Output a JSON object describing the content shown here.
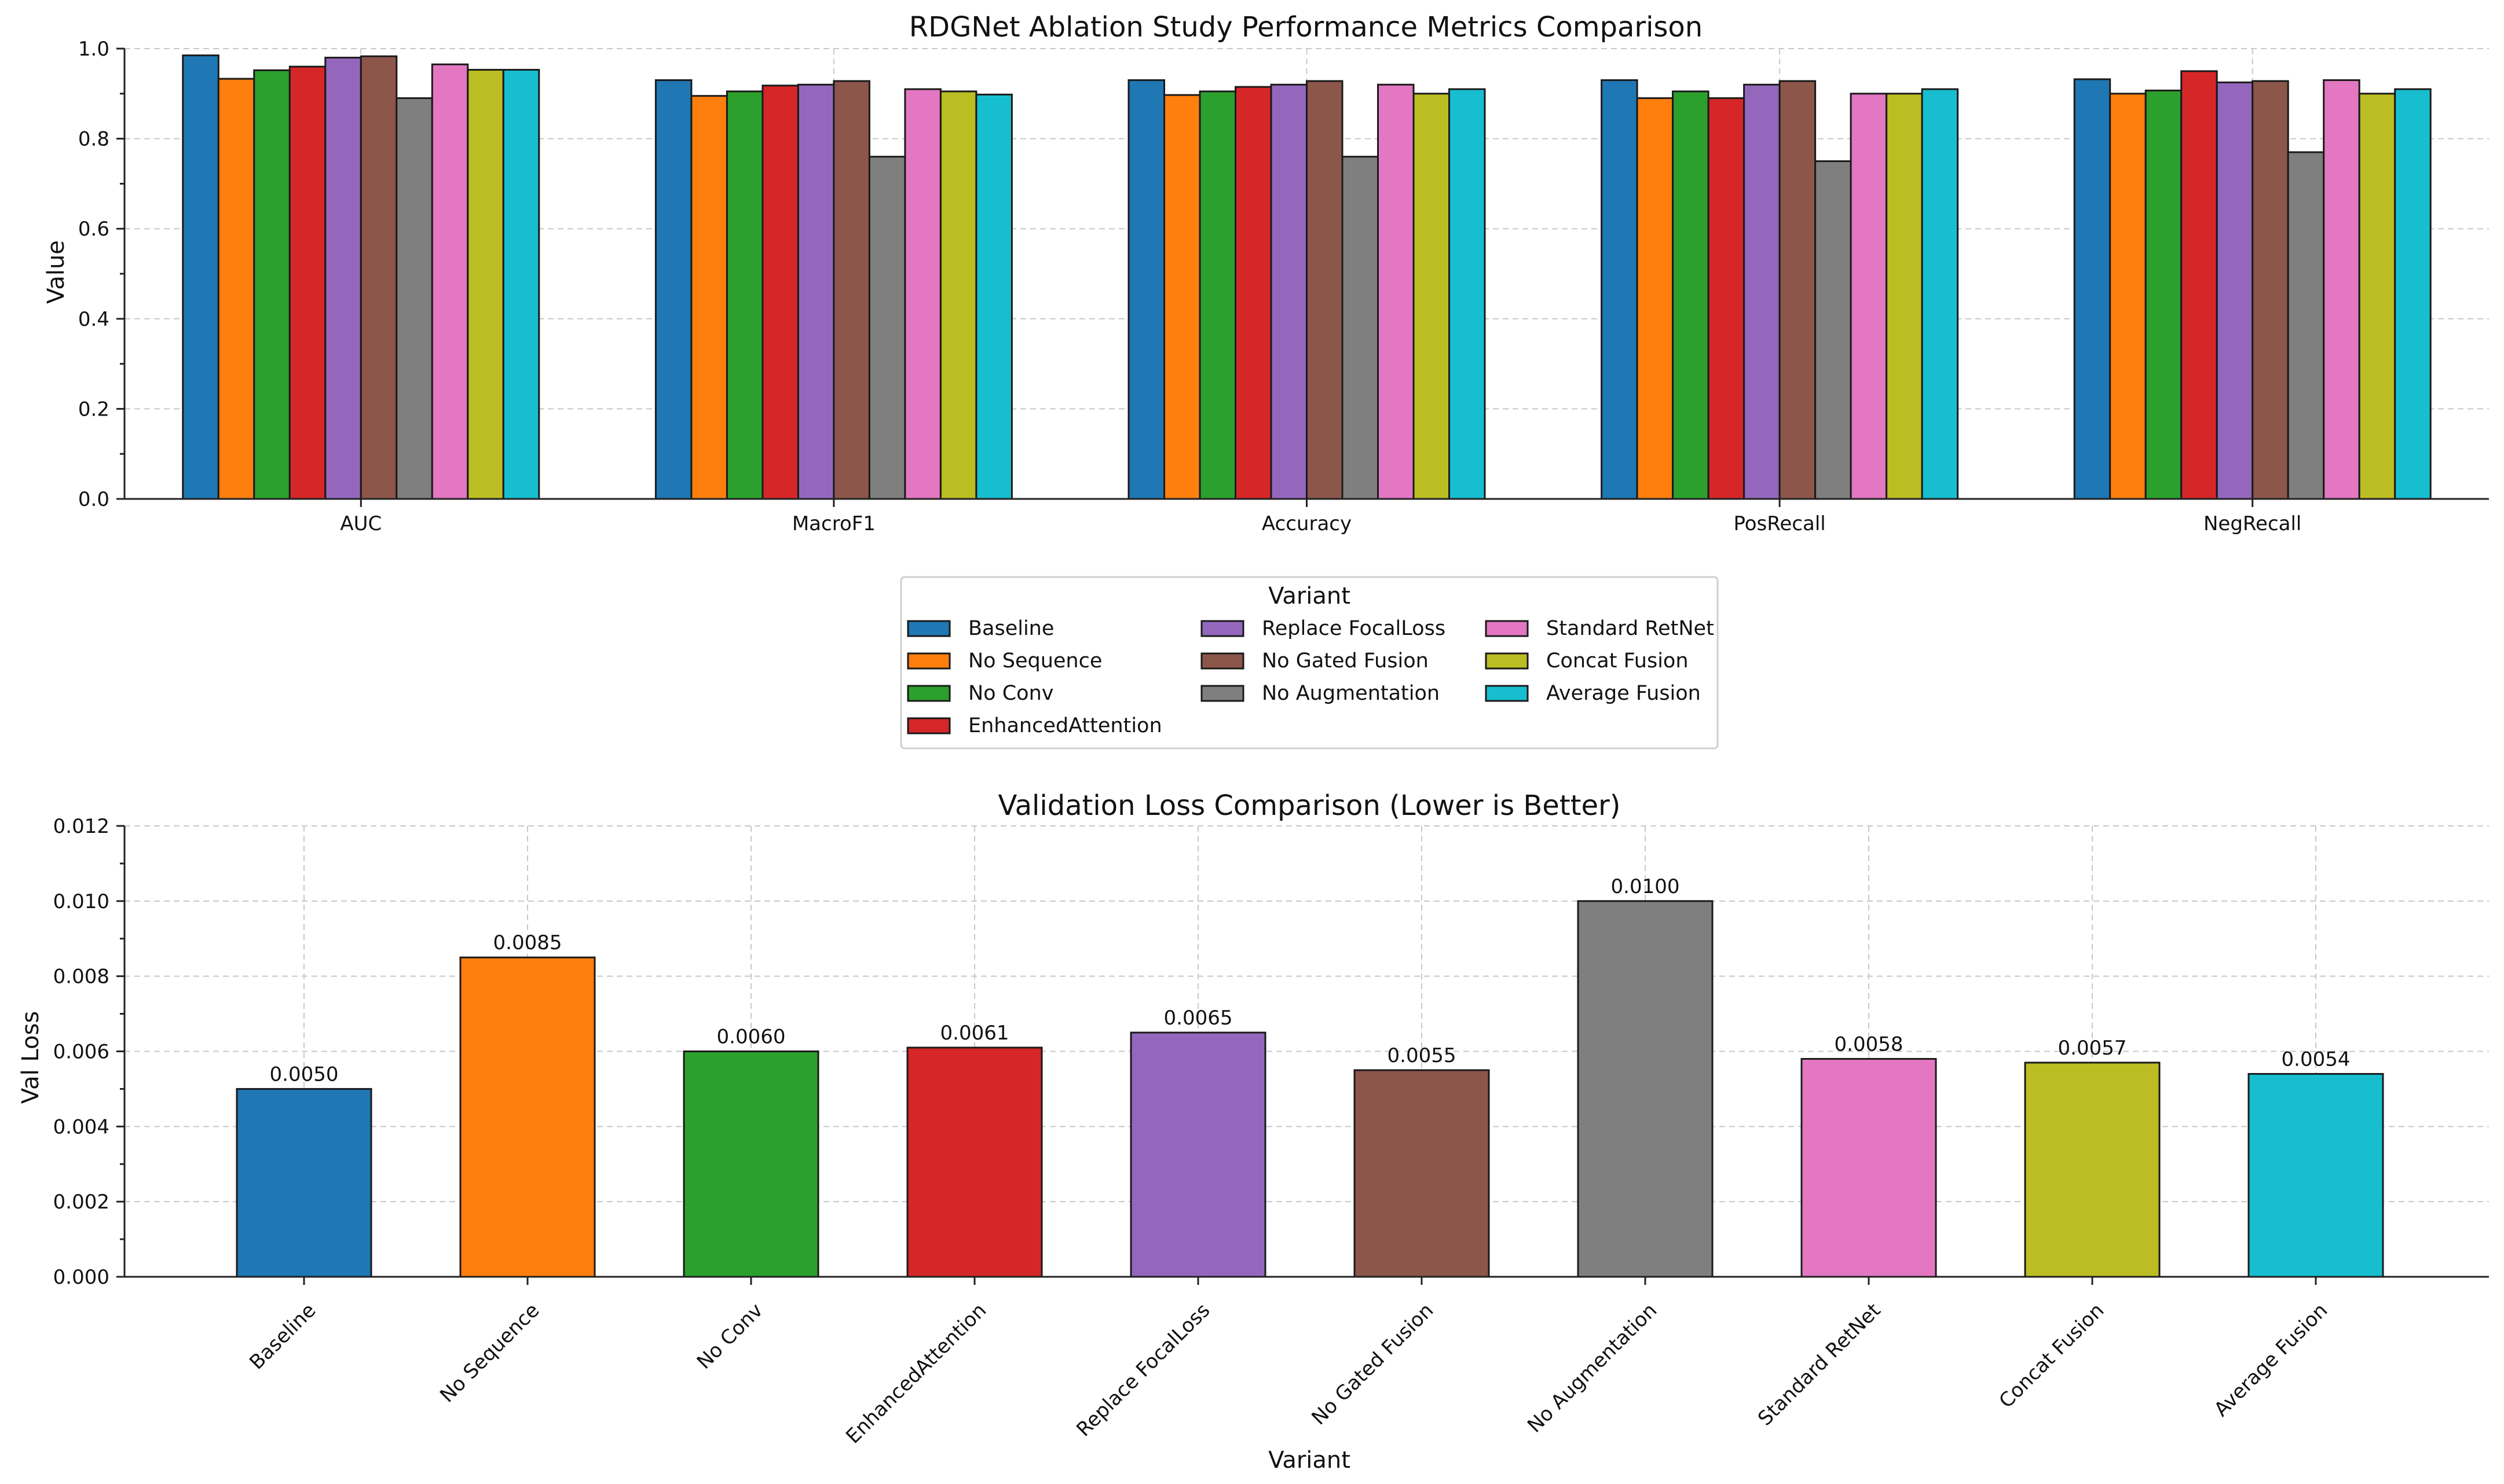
{
  "colors": {
    "Baseline": "#1f77b4",
    "No Sequence": "#ff7f0e",
    "No Conv": "#2ca02c",
    "EnhancedAttention": "#d62728",
    "Replace FocalLoss": "#9467bd",
    "No Gated Fusion": "#8c564b",
    "No Augmentation": "#7f7f7f",
    "Standard RetNet": "#e377c2",
    "Concat Fusion": "#bcbd22",
    "Average Fusion": "#17becf"
  },
  "legend": {
    "title": "Variant",
    "columns": [
      [
        "Baseline",
        "No Sequence",
        "No Conv",
        "EnhancedAttention"
      ],
      [
        "Replace FocalLoss",
        "No Gated Fusion",
        "No Augmentation"
      ],
      [
        "Standard RetNet",
        "Concat Fusion",
        "Average Fusion"
      ]
    ]
  },
  "chart_data": [
    {
      "type": "bar",
      "title": "RDGNet Ablation Study Performance Metrics Comparison",
      "xlabel": "",
      "ylabel": "Value",
      "ylim": [
        0,
        1.0
      ],
      "yticks": [
        "0.0",
        "0.2",
        "0.4",
        "0.6",
        "0.8",
        "1.0"
      ],
      "grid": true,
      "categories": [
        "AUC",
        "MacroF1",
        "Accuracy",
        "PosRecall",
        "NegRecall"
      ],
      "series": [
        {
          "name": "Baseline",
          "values": [
            0.985,
            0.93,
            0.93,
            0.93,
            0.932
          ]
        },
        {
          "name": "No Sequence",
          "values": [
            0.933,
            0.895,
            0.897,
            0.89,
            0.9
          ]
        },
        {
          "name": "No Conv",
          "values": [
            0.952,
            0.905,
            0.905,
            0.905,
            0.907
          ]
        },
        {
          "name": "EnhancedAttention",
          "values": [
            0.96,
            0.918,
            0.915,
            0.89,
            0.95
          ]
        },
        {
          "name": "Replace FocalLoss",
          "values": [
            0.98,
            0.92,
            0.92,
            0.92,
            0.925
          ]
        },
        {
          "name": "No Gated Fusion",
          "values": [
            0.983,
            0.928,
            0.928,
            0.928,
            0.928
          ]
        },
        {
          "name": "No Augmentation",
          "values": [
            0.89,
            0.76,
            0.76,
            0.75,
            0.77
          ]
        },
        {
          "name": "Standard RetNet",
          "values": [
            0.965,
            0.91,
            0.92,
            0.9,
            0.93
          ]
        },
        {
          "name": "Concat Fusion",
          "values": [
            0.953,
            0.905,
            0.9,
            0.9,
            0.9
          ]
        },
        {
          "name": "Average Fusion",
          "values": [
            0.953,
            0.898,
            0.91,
            0.91,
            0.91
          ]
        }
      ]
    },
    {
      "type": "bar",
      "title": "Validation Loss Comparison (Lower is Better)",
      "xlabel": "Variant",
      "ylabel": "Val Loss",
      "ylim": [
        0,
        0.012
      ],
      "yticks": [
        "0.000",
        "0.002",
        "0.004",
        "0.006",
        "0.008",
        "0.010",
        "0.012"
      ],
      "grid": true,
      "categories": [
        "Baseline",
        "No Sequence",
        "No Conv",
        "EnhancedAttention",
        "Replace FocalLoss",
        "No Gated Fusion",
        "No Augmentation",
        "Standard RetNet",
        "Concat Fusion",
        "Average Fusion"
      ],
      "values": [
        0.005,
        0.0085,
        0.006,
        0.0061,
        0.0065,
        0.0055,
        0.01,
        0.0058,
        0.0057,
        0.0054
      ],
      "value_labels": [
        "0.0050",
        "0.0085",
        "0.0060",
        "0.0061",
        "0.0065",
        "0.0055",
        "0.0100",
        "0.0058",
        "0.0057",
        "0.0054"
      ]
    }
  ]
}
